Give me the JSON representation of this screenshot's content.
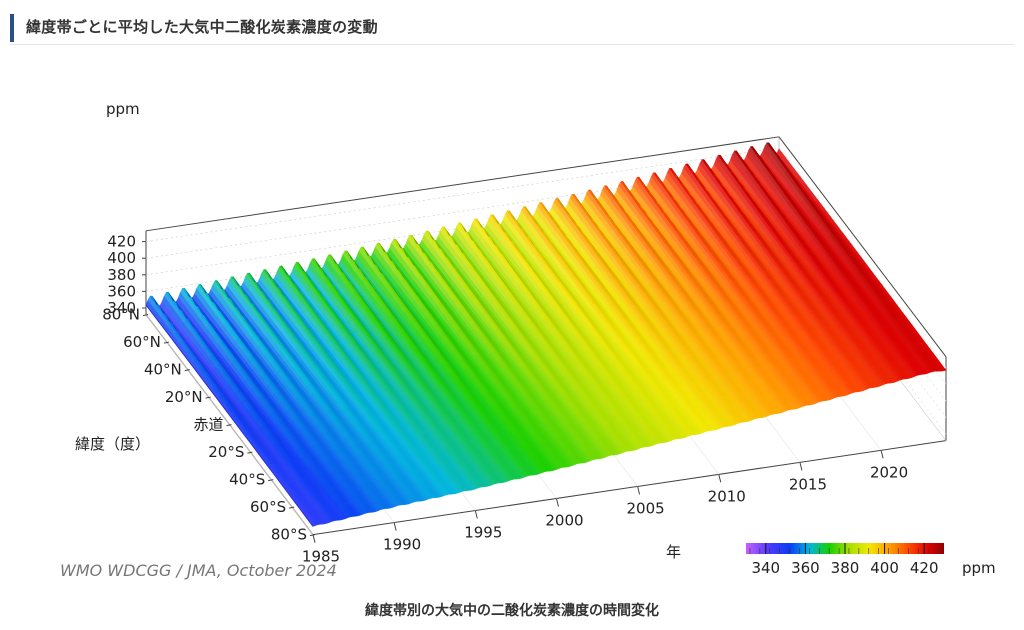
{
  "header": {
    "title": "緯度帯ごとに平均した大気中二酸化炭素濃度の変動"
  },
  "caption": "緯度帯別の大気中の二酸化炭素濃度の時間変化",
  "credit": "WMO WDCGG / JMA, October 2024",
  "colors": {
    "header_accent": "#2b4e8c"
  },
  "chart_data": {
    "type": "surface3d",
    "title": "",
    "zlabel": "ppm",
    "ylabel": "緯度（度）",
    "xlabel": "年",
    "x_ticks": [
      "1985",
      "1990",
      "1995",
      "2000",
      "2005",
      "2010",
      "2015",
      "2020"
    ],
    "y_ticks": [
      "80°N",
      "60°N",
      "40°N",
      "20°N",
      "赤道",
      "20°S",
      "40°S",
      "80°S"
    ],
    "y_ticks_full": [
      "80°N",
      "60°N",
      "40°N",
      "20°N",
      "赤道",
      "20°S",
      "40°S",
      "60°S",
      "80°S"
    ],
    "z_ticks": [
      "340",
      "360",
      "380",
      "400",
      "420"
    ],
    "xlim": [
      1985,
      2024
    ],
    "zlim": [
      340,
      420
    ],
    "colorbar": {
      "label": "ppm",
      "ticks": [
        "340",
        "360",
        "380",
        "400",
        "420"
      ],
      "range": [
        330,
        430
      ]
    },
    "summary_series": [
      {
        "x": [
          1985,
          1990,
          1995,
          2000,
          2005,
          2010,
          2015,
          2020,
          2023
        ],
        "values": [
          344,
          353,
          360,
          369,
          379,
          389,
          400,
          412,
          419
        ]
      }
    ],
    "seasonal_amplitude_north_ppm": 15,
    "seasonal_amplitude_south_ppm": 1
  }
}
